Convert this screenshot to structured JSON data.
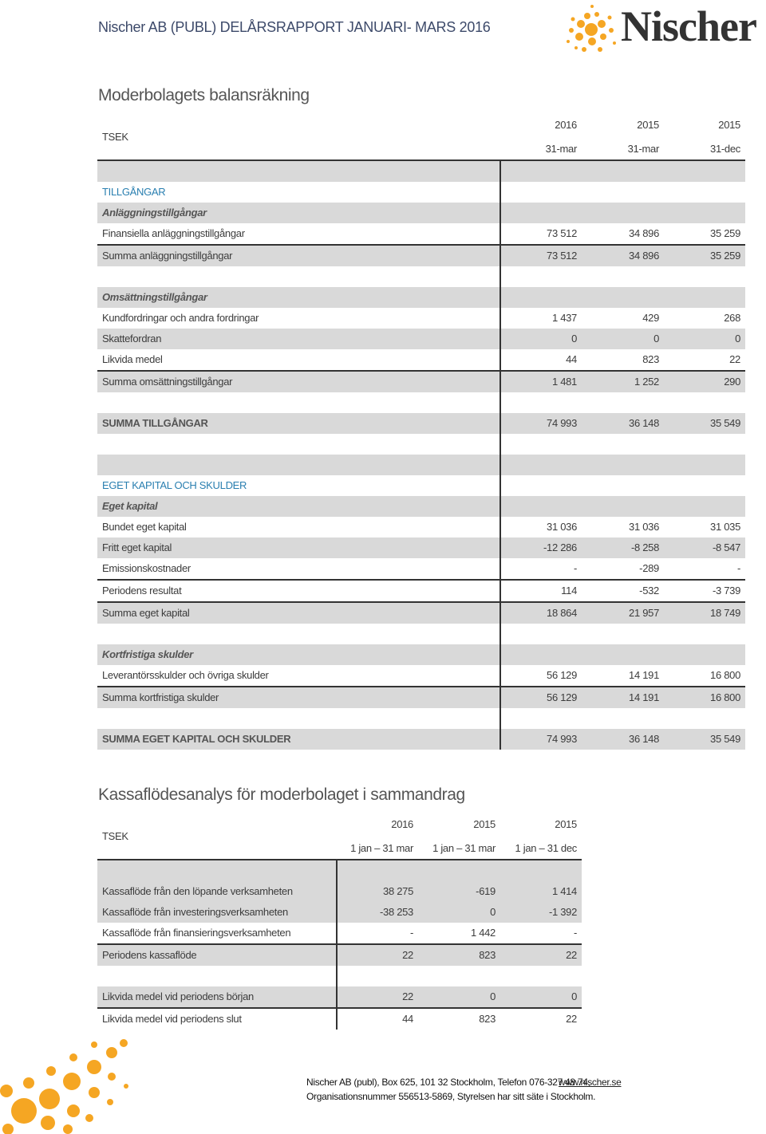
{
  "header": {
    "title": "Nischer AB (PUBL) DELÅRSRAPPORT JANUARI- MARS 2016",
    "logo": "Nischer"
  },
  "balance_sheet": {
    "title": "Moderbolagets balansräkning",
    "unit": "TSEK",
    "columns": [
      {
        "year": "2016",
        "period": "31-mar"
      },
      {
        "year": "2015",
        "period": "31-mar"
      },
      {
        "year": "2015",
        "period": "31-dec"
      }
    ],
    "rows": [
      {
        "label": "TILLGÅNGAR"
      },
      {
        "label": "Anläggningstillgångar"
      },
      {
        "label": "Finansiella anläggningstillgångar",
        "values": [
          "73 512",
          "34 896",
          "35 259"
        ]
      },
      {
        "label": "Summa anläggningstillgångar",
        "values": [
          "73 512",
          "34 896",
          "35 259"
        ]
      },
      {
        "label": "Omsättningstillgångar"
      },
      {
        "label": "Kundfordringar och andra fordringar",
        "values": [
          "1 437",
          "429",
          "268"
        ]
      },
      {
        "label": "Skattefordran",
        "values": [
          "0",
          "0",
          "0"
        ]
      },
      {
        "label": "Likvida medel",
        "values": [
          "44",
          "823",
          "22"
        ]
      },
      {
        "label": "Summa omsättningstillgångar",
        "values": [
          "1 481",
          "1 252",
          "290"
        ]
      },
      {
        "label": "SUMMA TILLGÅNGAR",
        "values": [
          "74 993",
          "36 148",
          "35 549"
        ]
      },
      {
        "label": "EGET KAPITAL OCH SKULDER"
      },
      {
        "label": "Eget kapital"
      },
      {
        "label": "Bundet eget kapital",
        "values": [
          "31 036",
          "31 036",
          "31 035"
        ]
      },
      {
        "label": "Fritt eget kapital",
        "values": [
          "-12 286",
          "-8 258",
          "-8 547"
        ]
      },
      {
        "label": "Emissionskostnader",
        "values": [
          "-",
          "-289",
          "-"
        ]
      },
      {
        "label": "Periodens resultat",
        "values": [
          "114",
          "-532",
          "-3 739"
        ]
      },
      {
        "label": "Summa eget kapital",
        "values": [
          "18 864",
          "21 957",
          "18 749"
        ]
      },
      {
        "label": "Kortfristiga skulder"
      },
      {
        "label": "Leverantörsskulder och övriga skulder",
        "values": [
          "56 129",
          "14 191",
          "16 800"
        ]
      },
      {
        "label": "Summa kortfristiga skulder",
        "values": [
          "56 129",
          "14 191",
          "16 800"
        ]
      },
      {
        "label": "SUMMA EGET KAPITAL OCH SKULDER",
        "values": [
          "74 993",
          "36 148",
          "35 549"
        ]
      }
    ]
  },
  "cash_flow": {
    "title": "Kassaflödesanalys för moderbolaget i sammandrag",
    "unit": "TSEK",
    "columns": [
      {
        "year": "2016",
        "period": "1 jan – 31 mar"
      },
      {
        "year": "2015",
        "period": "1 jan – 31 mar"
      },
      {
        "year": "2015",
        "period": "1 jan – 31 dec"
      }
    ],
    "rows": [
      {
        "label": "Kassaflöde från den löpande verksamheten",
        "values": [
          "38 275",
          "-619",
          "1 414"
        ]
      },
      {
        "label": "Kassaflöde från investeringsverksamheten",
        "values": [
          "-38 253",
          "0",
          "-1 392"
        ]
      },
      {
        "label": "Kassaflöde från finansieringsverksamheten",
        "values": [
          "-",
          "1 442",
          "-"
        ]
      },
      {
        "label": "Periodens kassaflöde",
        "values": [
          "22",
          "823",
          "22"
        ]
      },
      {
        "label": "Likvida medel vid periodens början",
        "values": [
          "22",
          "0",
          "0"
        ]
      },
      {
        "label": "Likvida medel vid periodens slut",
        "values": [
          "44",
          "823",
          "22"
        ]
      }
    ]
  },
  "footer": {
    "address": "Nischer AB (publ), Box 625, 101 32 Stockholm, Telefon 076-327 48 74,",
    "link": "www.nischer.se",
    "registration": "Organisationsnummer 556513-5869, Styrelsen har sitt säte i Stockholm."
  }
}
